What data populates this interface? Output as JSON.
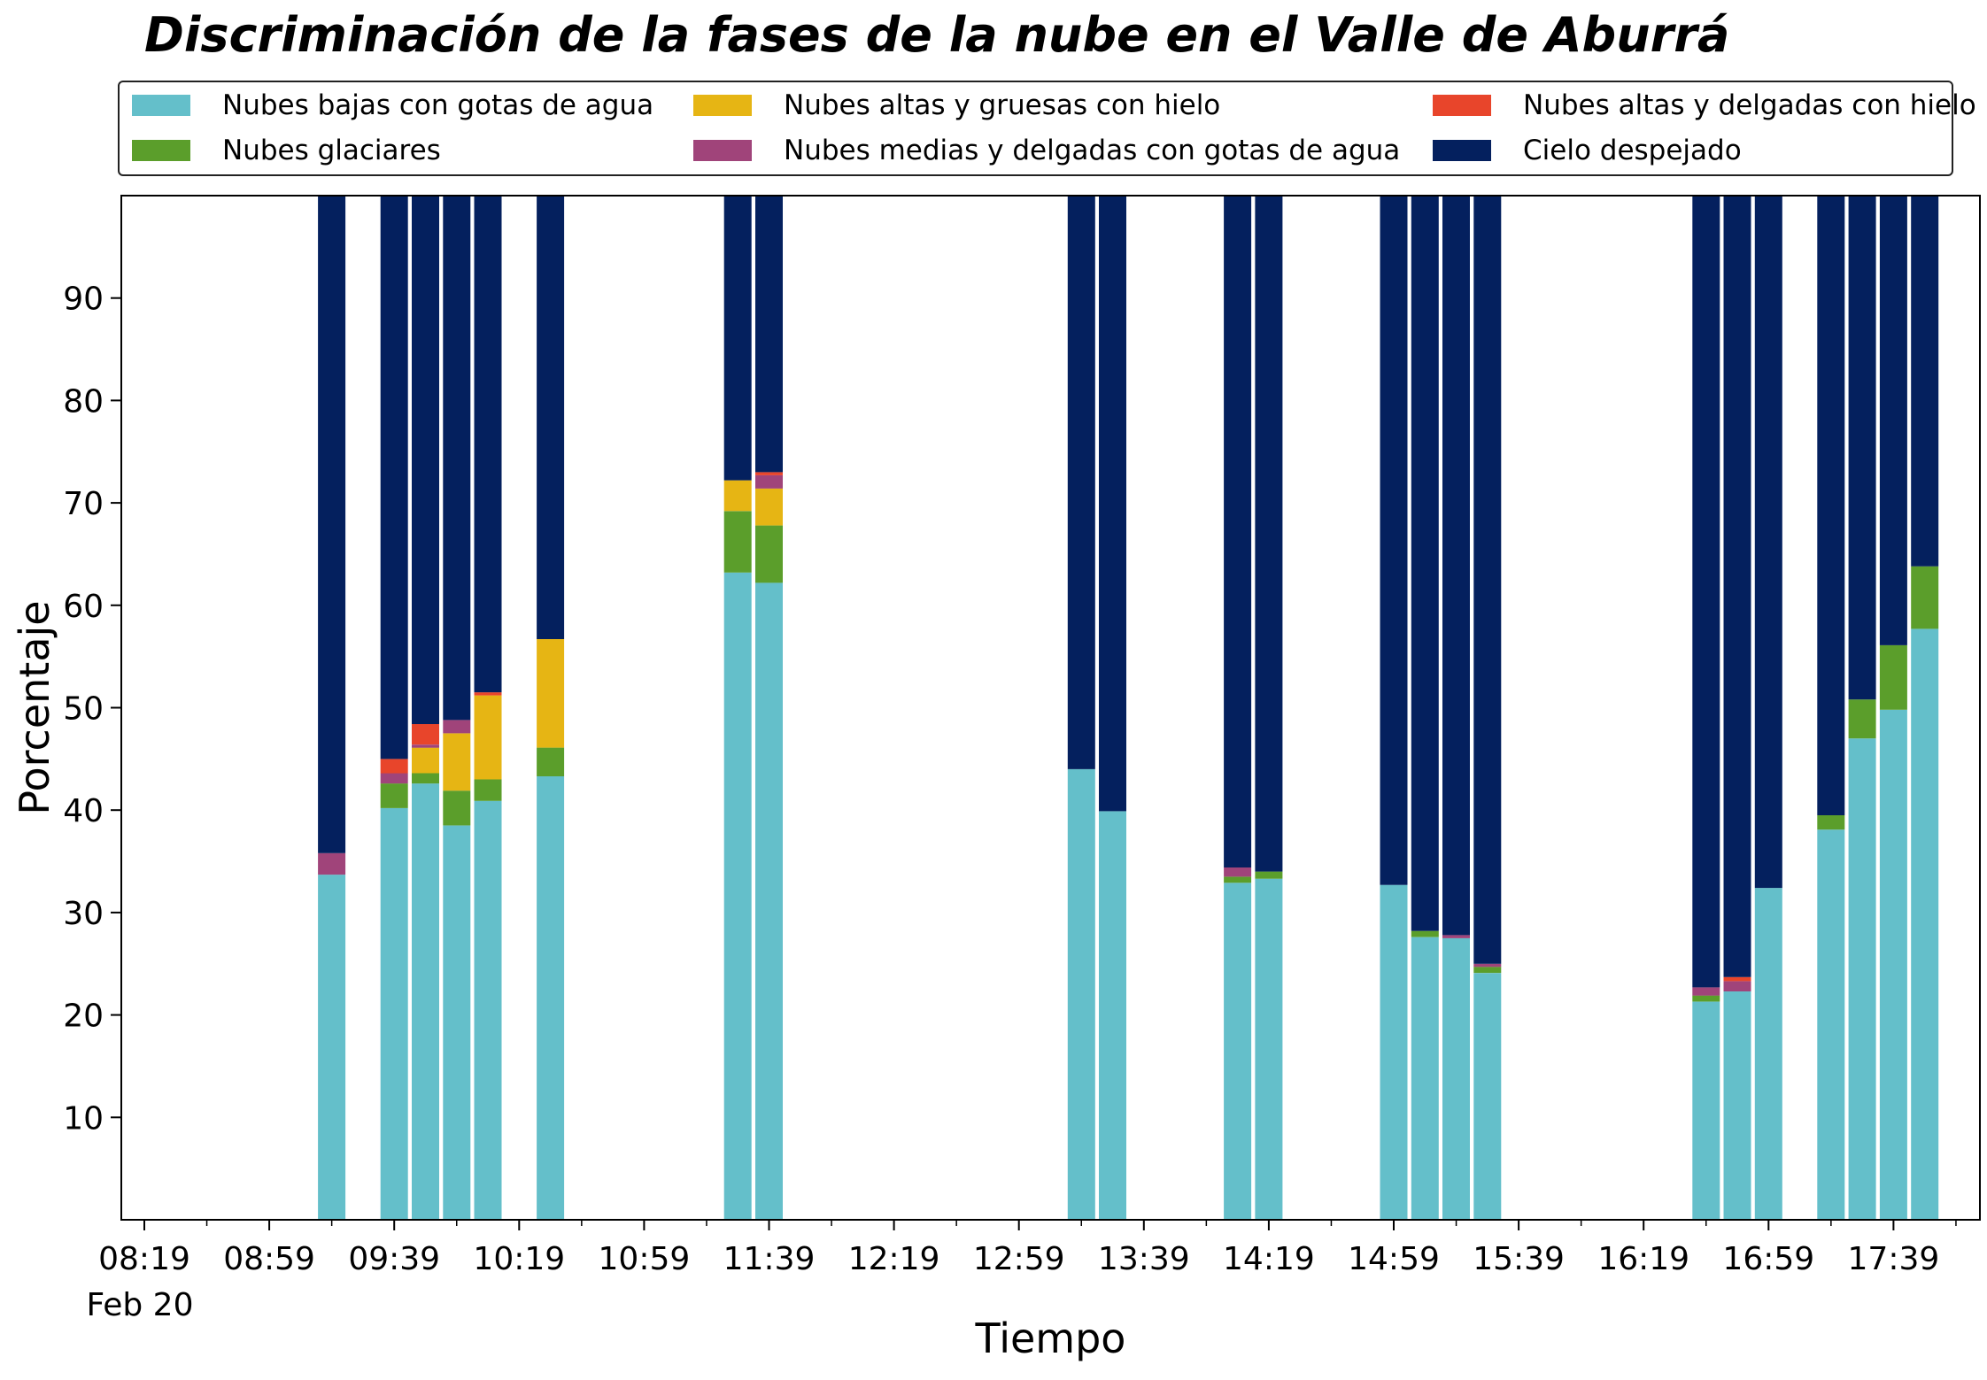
{
  "chart_data": {
    "type": "bar",
    "stacked": true,
    "title": "Discriminación de la fases de la nube en el Valle de Aburrá",
    "xlabel": "Tiempo",
    "ylabel": "Porcentaje",
    "ylim": [
      0,
      100
    ],
    "yticks": [
      10,
      20,
      30,
      40,
      50,
      60,
      70,
      80,
      90
    ],
    "xticks": [
      "08:19",
      "08:59",
      "09:39",
      "10:19",
      "10:59",
      "11:39",
      "12:19",
      "12:59",
      "13:39",
      "14:19",
      "14:59",
      "15:39",
      "16:19",
      "16:59",
      "17:39"
    ],
    "xtick_date_label": "Feb 20",
    "legend_position": "top",
    "grid": false,
    "x": [
      "09:19",
      "09:39",
      "09:49",
      "09:59",
      "10:09",
      "10:29",
      "11:29",
      "11:39",
      "13:19",
      "13:29",
      "14:09",
      "14:19",
      "14:59",
      "15:09",
      "15:19",
      "15:29",
      "16:39",
      "16:49",
      "16:59",
      "17:19",
      "17:29",
      "17:39",
      "17:49"
    ],
    "series": [
      {
        "name": "Nubes bajas con gotas de agua",
        "color": "#64bfca",
        "values": [
          33.7,
          40.2,
          42.6,
          38.5,
          40.9,
          43.3,
          63.2,
          62.2,
          44.0,
          39.9,
          32.9,
          33.3,
          32.7,
          27.6,
          27.5,
          24.1,
          21.3,
          22.3,
          32.4,
          38.1,
          47.0,
          49.8,
          57.7
        ]
      },
      {
        "name": "Nubes glaciares",
        "color": "#5b9e2b",
        "values": [
          0,
          2.4,
          1.0,
          3.4,
          2.1,
          2.8,
          6.0,
          5.6,
          0,
          0,
          0.6,
          0.7,
          0,
          0.6,
          0,
          0.6,
          0.6,
          0,
          0,
          1.4,
          3.8,
          6.3,
          6.1
        ]
      },
      {
        "name": "Nubes altas y gruesas con hielo",
        "color": "#e6b514",
        "values": [
          0,
          0,
          2.5,
          5.6,
          8.2,
          10.6,
          3.0,
          3.6,
          0,
          0,
          0,
          0,
          0,
          0,
          0,
          0,
          0,
          0,
          0,
          0,
          0,
          0,
          0
        ]
      },
      {
        "name": "Nubes medias y delgadas con gotas de agua",
        "color": "#a0447a",
        "values": [
          2.1,
          1.0,
          0.3,
          1.3,
          0,
          0,
          0,
          1.3,
          0,
          0,
          0.9,
          0,
          0,
          0,
          0.3,
          0.3,
          0.8,
          1.0,
          0,
          0,
          0,
          0,
          0
        ]
      },
      {
        "name": "Nubes altas y delgadas con hielo",
        "color": "#e8452b",
        "values": [
          0,
          1.4,
          2.0,
          0,
          0.3,
          0,
          0,
          0.3,
          0,
          0,
          0,
          0,
          0,
          0,
          0,
          0,
          0,
          0.4,
          0,
          0,
          0,
          0,
          0
        ]
      },
      {
        "name": "Cielo despejado",
        "color": "#04205e",
        "values": [
          64.2,
          55.0,
          51.6,
          51.2,
          48.5,
          43.3,
          27.8,
          27.0,
          56.0,
          60.1,
          65.6,
          66.0,
          67.3,
          71.8,
          72.2,
          75.0,
          77.3,
          76.3,
          67.6,
          60.5,
          49.2,
          43.9,
          36.2
        ]
      }
    ]
  }
}
